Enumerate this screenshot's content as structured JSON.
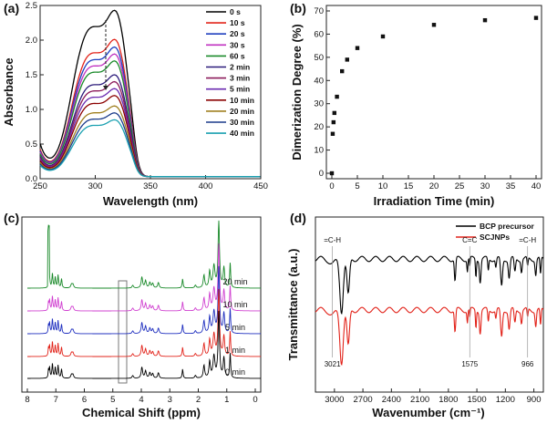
{
  "chart_data": [
    {
      "panel": "(a)",
      "type": "line",
      "xlabel": "Wavelength (nm)",
      "ylabel": "Absorbance",
      "xlim": [
        250,
        450
      ],
      "ylim": [
        0,
        2.5
      ],
      "xticks": [
        250,
        300,
        350,
        400,
        450
      ],
      "yticks": [
        0.0,
        0.5,
        1.0,
        1.5,
        2.0,
        2.5
      ],
      "legend_position": "top-right",
      "series": [
        {
          "name": "0 s",
          "color": "#000000",
          "peak": 2.4
        },
        {
          "name": "10 s",
          "color": "#e2231a",
          "peak": 1.98
        },
        {
          "name": "20 s",
          "color": "#1f3fbf",
          "peak": 1.87
        },
        {
          "name": "30 s",
          "color": "#c030c0",
          "peak": 1.77
        },
        {
          "name": "60 s",
          "color": "#1a8a2a",
          "peak": 1.67
        },
        {
          "name": "2 min",
          "color": "#2a1a7a",
          "peak": 1.47
        },
        {
          "name": "3 min",
          "color": "#8b1a5a",
          "peak": 1.37
        },
        {
          "name": "5 min",
          "color": "#6a2ab0",
          "peak": 1.27
        },
        {
          "name": "10 min",
          "color": "#8b0000",
          "peak": 1.17
        },
        {
          "name": "20 min",
          "color": "#a08020",
          "peak": 1.02
        },
        {
          "name": "30 min",
          "color": "#1a3a8a",
          "peak": 0.92
        },
        {
          "name": "40 min",
          "color": "#1aa0b0",
          "peak": 0.82
        }
      ]
    },
    {
      "panel": "(b)",
      "type": "scatter",
      "xlabel": "Irradiation Time (min)",
      "ylabel": "Dimerization Degree (%)",
      "xlim": [
        0,
        40
      ],
      "ylim": [
        0,
        70
      ],
      "xticks": [
        0,
        5,
        10,
        15,
        20,
        25,
        30,
        35,
        40
      ],
      "yticks": [
        0,
        10,
        20,
        30,
        40,
        50,
        60,
        70
      ],
      "x": [
        0,
        0.17,
        0.33,
        0.5,
        1,
        2,
        3,
        5,
        10,
        20,
        30,
        40
      ],
      "y": [
        0,
        17,
        22,
        26,
        33,
        44,
        49,
        54,
        59,
        64,
        66,
        67
      ]
    },
    {
      "panel": "(c)",
      "type": "line",
      "xlabel": "Chemical Shift (ppm)",
      "xticks": [
        8,
        7,
        6,
        5,
        4,
        3,
        2,
        1,
        0
      ],
      "xlim": [
        8,
        0
      ],
      "series": [
        {
          "name": "20 min",
          "color": "#1a8a2a"
        },
        {
          "name": "10 min",
          "color": "#d040d0"
        },
        {
          "name": "5 min",
          "color": "#1f2fbf"
        },
        {
          "name": "1 min",
          "color": "#e2231a"
        },
        {
          "name": "0 min",
          "color": "#000000"
        }
      ]
    },
    {
      "panel": "(d)",
      "type": "line",
      "xlabel": "Wavenumber (cm⁻¹)",
      "ylabel": "Transmittance (a.u.)",
      "xlim": [
        3200,
        800
      ],
      "xticks": [
        3000,
        2700,
        2400,
        2100,
        1800,
        1500,
        1200,
        900
      ],
      "legend_position": "top-right",
      "series": [
        {
          "name": "BCP precursor",
          "color": "#000000"
        },
        {
          "name": "SCJNPs",
          "color": "#e2231a"
        }
      ],
      "annotations": [
        {
          "text": "=C-H",
          "x": 3021
        },
        {
          "text": "C=C",
          "x": 1575
        },
        {
          "text": "=C-H",
          "x": 966
        },
        {
          "text": "3021",
          "x": 3021
        },
        {
          "text": "1575",
          "x": 1575
        },
        {
          "text": "966",
          "x": 966
        }
      ]
    }
  ]
}
